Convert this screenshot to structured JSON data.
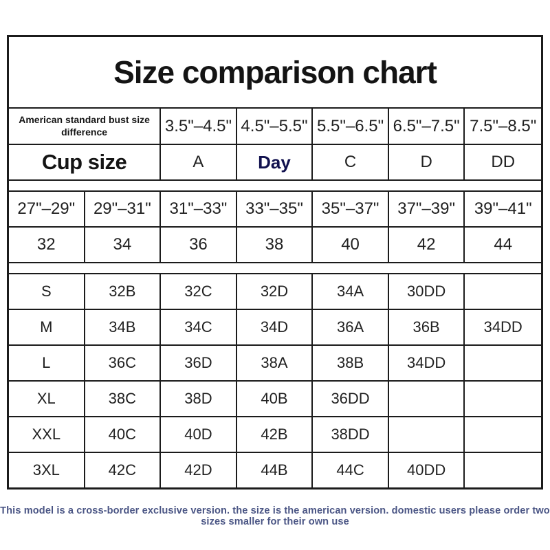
{
  "title": "Size comparison chart",
  "header_table": {
    "bust_diff_label": "American standard bust size difference",
    "bust_diff_values": [
      "3.5\"–4.5\"",
      "4.5\"–5.5\"",
      "5.5\"–6.5\"",
      "6.5\"–7.5\"",
      "7.5\"–8.5\""
    ],
    "cup_label": "Cup size",
    "cup_values": [
      "A",
      "Day",
      "C",
      "D",
      "DD"
    ]
  },
  "bust_table": {
    "bust_ranges": [
      "27\"–29\"",
      "29\"–31\"",
      "31\"–33\"",
      "33\"–35\"",
      "35\"–37\"",
      "37\"–39\"",
      "39\"–41\""
    ],
    "band_sizes": [
      "32",
      "34",
      "36",
      "38",
      "40",
      "42",
      "44"
    ]
  },
  "size_table": {
    "rows": [
      {
        "size": "S",
        "cells": [
          "32B",
          "32C",
          "32D",
          "34A",
          "30DD",
          ""
        ]
      },
      {
        "size": "M",
        "cells": [
          "34B",
          "34C",
          "34D",
          "36A",
          "36B",
          "34DD"
        ]
      },
      {
        "size": "L",
        "cells": [
          "36C",
          "36D",
          "38A",
          "38B",
          "34DD",
          ""
        ]
      },
      {
        "size": "XL",
        "cells": [
          "38C",
          "38D",
          "40B",
          "36DD",
          "",
          ""
        ]
      },
      {
        "size": "XXL",
        "cells": [
          "40C",
          "40D",
          "42B",
          "38DD",
          "",
          ""
        ]
      },
      {
        "size": "3XL",
        "cells": [
          "42C",
          "42D",
          "44B",
          "44C",
          "40DD",
          ""
        ]
      }
    ]
  },
  "footnote": "This model is a cross-border exclusive version. the size is the american version. domestic users please order two sizes smaller for their own use",
  "colors": {
    "border": "#1b1b1b",
    "text": "#212121",
    "cup_b_navy": "#11114e",
    "footnote_blue": "#4b5685",
    "background": "#ffffff"
  }
}
